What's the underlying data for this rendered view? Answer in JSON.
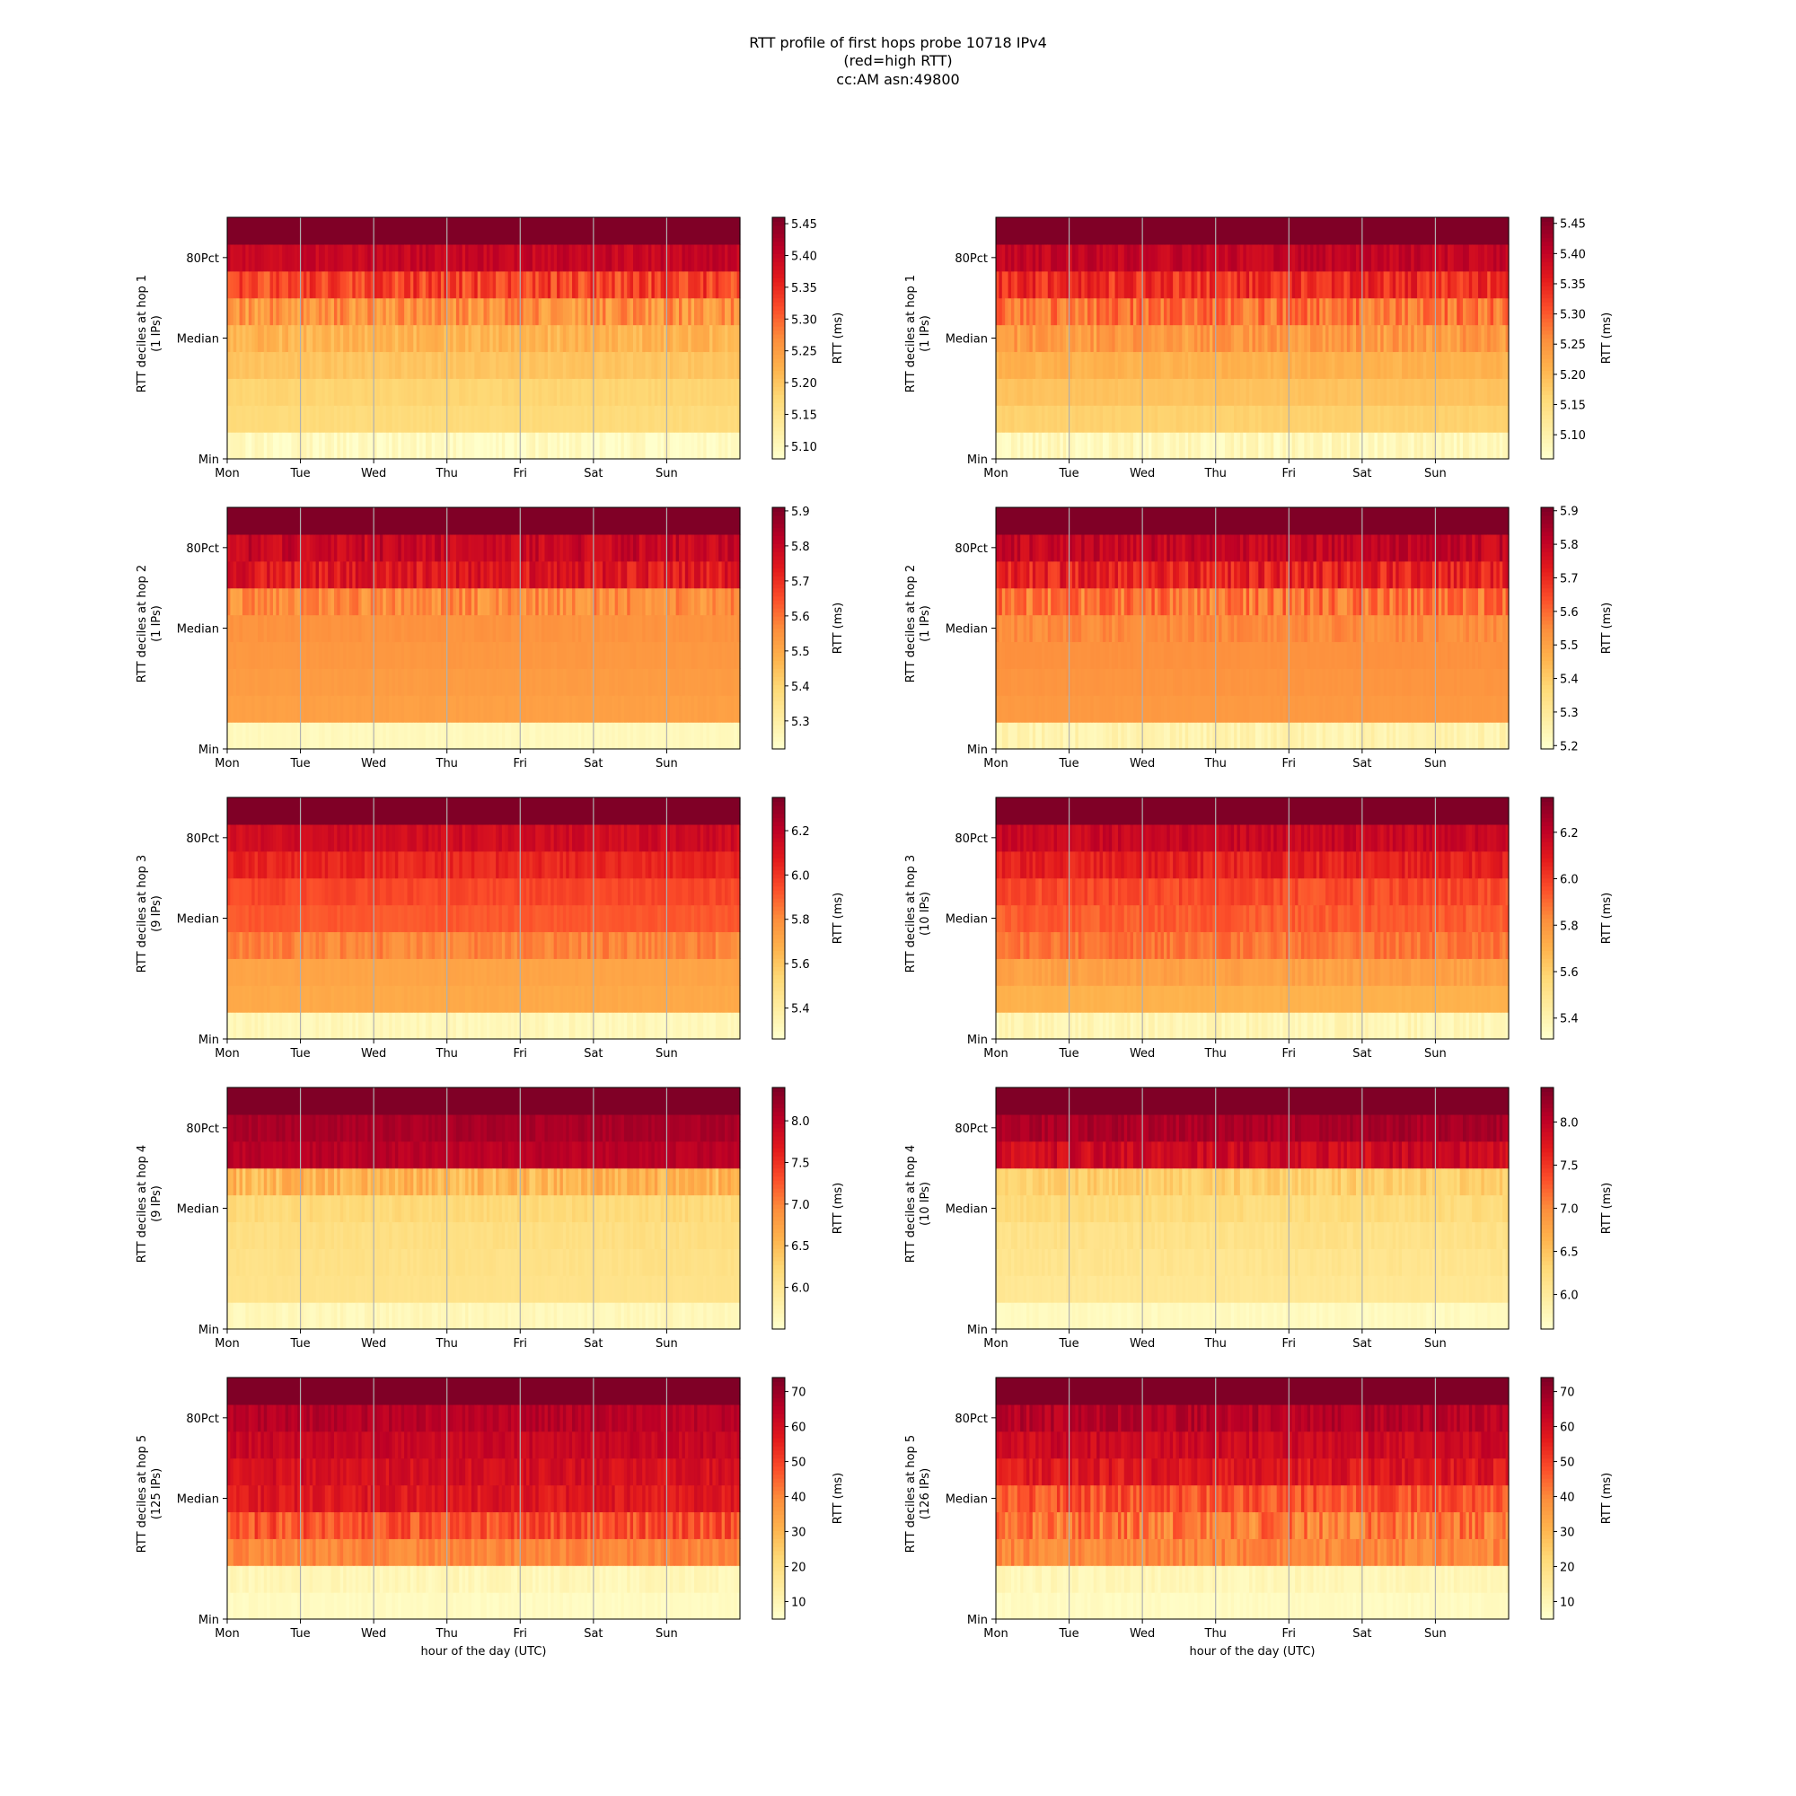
{
  "figure": {
    "title_lines": [
      "RTT profile of first hops probe 10718 IPv4",
      "(red=high RTT)",
      "cc:AM asn:49800"
    ]
  },
  "colors": {
    "colormap": "YlOrRd",
    "stops": [
      "#ffffcc",
      "#ffeda0",
      "#fed976",
      "#feb24c",
      "#fd8d3c",
      "#fc4e2a",
      "#e31a1c",
      "#bd0026",
      "#800026"
    ],
    "day_gridline": "#b0b0b0"
  },
  "chart_data": [
    {
      "type": "heatmap",
      "col": 0,
      "row": 0,
      "ylabel": "RTT deciles at hop 1",
      "ylabel2": "(1 IPs)",
      "colorbar_label": "RTT (ms)",
      "cmin": 5.08,
      "cmax": 5.46,
      "colorbar_ticks": [
        "5.10",
        "5.15",
        "5.20",
        "5.25",
        "5.30",
        "5.35",
        "5.40",
        "5.45"
      ],
      "decile_values": [
        5.09,
        5.17,
        5.18,
        5.2,
        5.22,
        5.26,
        5.33,
        5.4,
        5.46
      ],
      "decile_noise": [
        0.02,
        0.005,
        0.005,
        0.008,
        0.02,
        0.04,
        0.04,
        0.02,
        0.0
      ],
      "xticks": [
        "Mon",
        "Tue",
        "Wed",
        "Thu",
        "Fri",
        "Sat",
        "Sun"
      ],
      "yticks": [
        "Min",
        "Median",
        "80Pct"
      ],
      "xlabel": ""
    },
    {
      "type": "heatmap",
      "col": 1,
      "row": 0,
      "ylabel": "RTT deciles at hop 1",
      "ylabel2": "(1 IPs)",
      "colorbar_label": "RTT (ms)",
      "cmin": 5.06,
      "cmax": 5.46,
      "colorbar_ticks": [
        "5.10",
        "5.15",
        "5.20",
        "5.25",
        "5.30",
        "5.35",
        "5.40",
        "5.45"
      ],
      "decile_values": [
        5.08,
        5.17,
        5.19,
        5.21,
        5.24,
        5.28,
        5.34,
        5.4,
        5.46
      ],
      "decile_noise": [
        0.02,
        0.005,
        0.005,
        0.01,
        0.03,
        0.04,
        0.04,
        0.02,
        0.0
      ],
      "xticks": [
        "Mon",
        "Tue",
        "Wed",
        "Thu",
        "Fri",
        "Sat",
        "Sun"
      ],
      "yticks": [
        "Min",
        "Median",
        "80Pct"
      ],
      "xlabel": ""
    },
    {
      "type": "heatmap",
      "col": 0,
      "row": 1,
      "ylabel": "RTT deciles at hop 2",
      "ylabel2": "(1 IPs)",
      "colorbar_label": "RTT (ms)",
      "cmin": 5.22,
      "cmax": 5.91,
      "colorbar_ticks": [
        "5.3",
        "5.4",
        "5.5",
        "5.6",
        "5.7",
        "5.8",
        "5.9"
      ],
      "decile_values": [
        5.25,
        5.52,
        5.53,
        5.54,
        5.55,
        5.56,
        5.75,
        5.8,
        5.91
      ],
      "decile_noise": [
        0.01,
        0.005,
        0.005,
        0.005,
        0.01,
        0.06,
        0.06,
        0.05,
        0.0
      ],
      "xticks": [
        "Mon",
        "Tue",
        "Wed",
        "Thu",
        "Fri",
        "Sat",
        "Sun"
      ],
      "yticks": [
        "Min",
        "Median",
        "80Pct"
      ],
      "xlabel": ""
    },
    {
      "type": "heatmap",
      "col": 1,
      "row": 1,
      "ylabel": "RTT deciles at hop 2",
      "ylabel2": "(1 IPs)",
      "colorbar_label": "RTT (ms)",
      "cmin": 5.19,
      "cmax": 5.91,
      "colorbar_ticks": [
        "5.2",
        "5.3",
        "5.4",
        "5.5",
        "5.6",
        "5.7",
        "5.8",
        "5.9"
      ],
      "decile_values": [
        5.25,
        5.52,
        5.53,
        5.54,
        5.55,
        5.58,
        5.72,
        5.8,
        5.91
      ],
      "decile_noise": [
        0.03,
        0.005,
        0.005,
        0.005,
        0.03,
        0.08,
        0.07,
        0.05,
        0.0
      ],
      "xticks": [
        "Mon",
        "Tue",
        "Wed",
        "Thu",
        "Fri",
        "Sat",
        "Sun"
      ],
      "yticks": [
        "Min",
        "Median",
        "80Pct"
      ],
      "xlabel": ""
    },
    {
      "type": "heatmap",
      "col": 0,
      "row": 2,
      "ylabel": "RTT deciles at hop 3",
      "ylabel2": "(9 IPs)",
      "colorbar_label": "RTT (ms)",
      "cmin": 5.26,
      "cmax": 6.35,
      "colorbar_ticks": [
        "5.4",
        "5.6",
        "5.8",
        "6.0",
        "6.2"
      ],
      "decile_values": [
        5.32,
        5.7,
        5.72,
        5.82,
        5.92,
        5.96,
        6.05,
        6.15,
        6.35
      ],
      "decile_noise": [
        0.03,
        0.01,
        0.01,
        0.06,
        0.02,
        0.03,
        0.05,
        0.05,
        0.0
      ],
      "xticks": [
        "Mon",
        "Tue",
        "Wed",
        "Thu",
        "Fri",
        "Sat",
        "Sun"
      ],
      "yticks": [
        "Min",
        "Median",
        "80Pct"
      ],
      "xlabel": ""
    },
    {
      "type": "heatmap",
      "col": 1,
      "row": 2,
      "ylabel": "RTT deciles at hop 3",
      "ylabel2": "(10 IPs)",
      "colorbar_label": "RTT (ms)",
      "cmin": 5.31,
      "cmax": 6.35,
      "colorbar_ticks": [
        "5.4",
        "5.6",
        "5.8",
        "6.0",
        "6.2"
      ],
      "decile_values": [
        5.38,
        5.7,
        5.76,
        5.88,
        5.93,
        5.97,
        6.08,
        6.18,
        6.35
      ],
      "decile_noise": [
        0.04,
        0.01,
        0.03,
        0.05,
        0.04,
        0.05,
        0.06,
        0.05,
        0.0
      ],
      "xticks": [
        "Mon",
        "Tue",
        "Wed",
        "Thu",
        "Fri",
        "Sat",
        "Sun"
      ],
      "yticks": [
        "Min",
        "Median",
        "80Pct"
      ],
      "xlabel": ""
    },
    {
      "type": "heatmap",
      "col": 0,
      "row": 3,
      "ylabel": "RTT deciles at hop 4",
      "ylabel2": "(9 IPs)",
      "colorbar_label": "RTT (ms)",
      "cmin": 5.5,
      "cmax": 8.4,
      "colorbar_ticks": [
        "6.0",
        "6.5",
        "7.0",
        "7.5",
        "8.0"
      ],
      "decile_values": [
        5.65,
        6.05,
        6.08,
        6.12,
        6.2,
        6.55,
        8.05,
        8.15,
        8.4
      ],
      "decile_noise": [
        0.08,
        0.02,
        0.04,
        0.05,
        0.08,
        0.25,
        0.1,
        0.08,
        0.0
      ],
      "xticks": [
        "Mon",
        "Tue",
        "Wed",
        "Thu",
        "Fri",
        "Sat",
        "Sun"
      ],
      "yticks": [
        "Min",
        "Median",
        "80Pct"
      ],
      "xlabel": ""
    },
    {
      "type": "heatmap",
      "col": 1,
      "row": 3,
      "ylabel": "RTT deciles at hop 4",
      "ylabel2": "(10 IPs)",
      "colorbar_label": "RTT (ms)",
      "cmin": 5.6,
      "cmax": 8.4,
      "colorbar_ticks": [
        "6.0",
        "6.5",
        "7.0",
        "7.5",
        "8.0"
      ],
      "decile_values": [
        5.7,
        6.05,
        6.1,
        6.15,
        6.25,
        6.4,
        7.9,
        8.15,
        8.4
      ],
      "decile_noise": [
        0.05,
        0.03,
        0.05,
        0.06,
        0.08,
        0.15,
        0.2,
        0.12,
        0.0
      ],
      "xticks": [
        "Mon",
        "Tue",
        "Wed",
        "Thu",
        "Fri",
        "Sat",
        "Sun"
      ],
      "yticks": [
        "Min",
        "Median",
        "80Pct"
      ],
      "xlabel": ""
    },
    {
      "type": "heatmap",
      "col": 0,
      "row": 4,
      "ylabel": "RTT deciles at hop 5",
      "ylabel2": "(125 IPs)",
      "colorbar_label": "RTT (ms)",
      "cmin": 5,
      "cmax": 74,
      "colorbar_ticks": [
        "10",
        "20",
        "30",
        "40",
        "50",
        "60",
        "70"
      ],
      "decile_values": [
        7,
        9,
        40,
        48,
        58,
        60,
        63,
        66,
        74
      ],
      "decile_noise": [
        1,
        2,
        3,
        6,
        4,
        4,
        3,
        3,
        0
      ],
      "xticks": [
        "Mon",
        "Tue",
        "Wed",
        "Thu",
        "Fri",
        "Sat",
        "Sun"
      ],
      "yticks": [
        "Min",
        "Median",
        "80Pct"
      ],
      "xlabel": "hour of the day (UTC)"
    },
    {
      "type": "heatmap",
      "col": 1,
      "row": 4,
      "ylabel": "RTT deciles at hop 5",
      "ylabel2": "(126 IPs)",
      "colorbar_label": "RTT (ms)",
      "cmin": 5,
      "cmax": 74,
      "colorbar_ticks": [
        "10",
        "20",
        "30",
        "40",
        "50",
        "60",
        "70"
      ],
      "decile_values": [
        7,
        9,
        40,
        42,
        48,
        58,
        62,
        66,
        74
      ],
      "decile_noise": [
        1,
        2,
        4,
        8,
        6,
        5,
        4,
        4,
        0
      ],
      "xticks": [
        "Mon",
        "Tue",
        "Wed",
        "Thu",
        "Fri",
        "Sat",
        "Sun"
      ],
      "yticks": [
        "Min",
        "Median",
        "80Pct"
      ],
      "xlabel": "hour of the day (UTC)"
    }
  ]
}
